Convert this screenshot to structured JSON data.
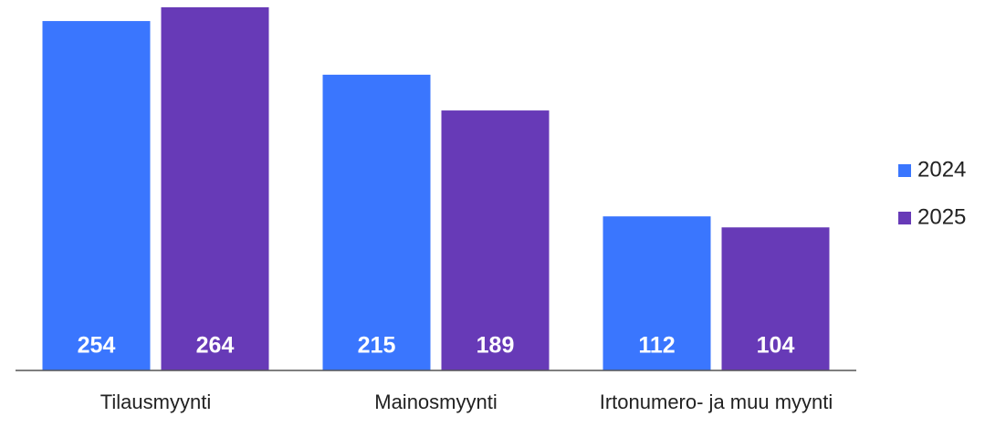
{
  "chart_data": {
    "type": "bar",
    "categories": [
      "Tilausmyynti",
      "Mainosmyynti",
      "Irtonumero- ja muu myynti"
    ],
    "series": [
      {
        "name": "2024",
        "color": "#3a76fe",
        "values": [
          254,
          215,
          112
        ]
      },
      {
        "name": "2025",
        "color": "#673ab7",
        "values": [
          264,
          189,
          104
        ]
      }
    ],
    "legend": "right"
  }
}
